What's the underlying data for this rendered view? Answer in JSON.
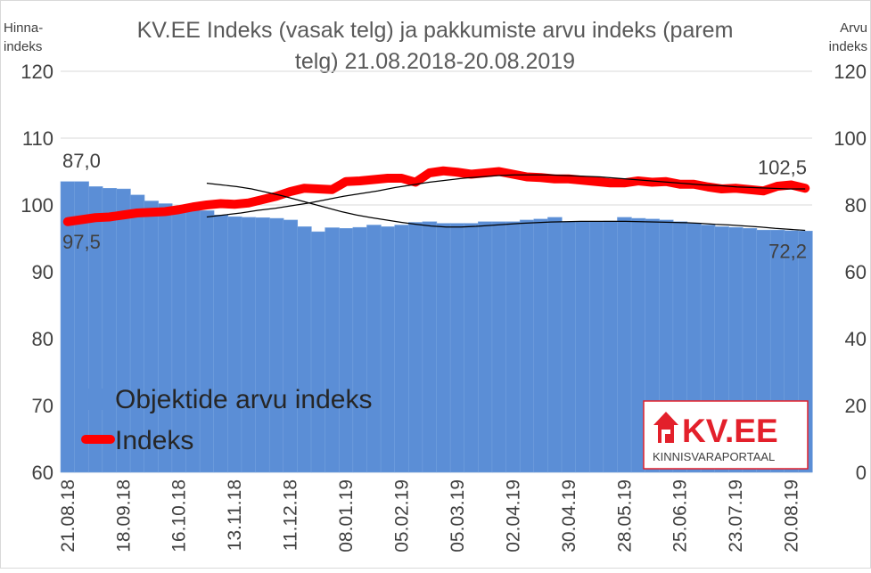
{
  "chart_data": {
    "type": "bar+line",
    "title": "KV.EE Indeks (vasak telg) ja pakkumiste arvu indeks (parem telg) 21.08.2018-20.08.2019",
    "title_lines": [
      "KV.EE Indeks (vasak telg) ja pakkumiste arvu indeks (parem",
      "telg) 21.08.2018-20.08.2019"
    ],
    "y_left_label_lines": [
      "Hinna-",
      "indeks"
    ],
    "y_right_label_lines": [
      "Arvu",
      "indeks"
    ],
    "y_left_lim": [
      60,
      120
    ],
    "y_left_ticks": [
      "60",
      "70",
      "80",
      "90",
      "100",
      "110",
      "120"
    ],
    "y_right_lim": [
      0,
      120
    ],
    "y_right_ticks": [
      "0",
      "20",
      "40",
      "60",
      "80",
      "100",
      "120"
    ],
    "x_tick_labels": [
      "21.08.18",
      "18.09.18",
      "16.10.18",
      "13.11.18",
      "11.12.18",
      "08.01.19",
      "05.02.19",
      "05.03.19",
      "02.04.19",
      "30.04.19",
      "28.05.19",
      "25.06.19",
      "23.07.19",
      "20.08.19"
    ],
    "grid": "horizontal",
    "legend_position": "bottom-left",
    "series": [
      {
        "name": "Objektide arvu indeks",
        "kind": "bar",
        "axis": "right",
        "color": "#5B8ED6",
        "values": [
          87.0,
          87.0,
          85.5,
          85.0,
          84.8,
          83.0,
          81.2,
          80.4,
          79.5,
          79.0,
          78.3,
          77.0,
          76.5,
          76.3,
          76.2,
          76.0,
          75.5,
          73.5,
          72.0,
          73.2,
          73.0,
          73.3,
          74.0,
          73.5,
          74.0,
          74.8,
          75.0,
          74.5,
          74.5,
          74.5,
          75.0,
          75.0,
          75.0,
          75.5,
          75.8,
          76.3,
          75.0,
          75.0,
          75.0,
          75.2,
          76.3,
          76.0,
          75.8,
          75.5,
          75.0,
          74.5,
          74.0,
          73.5,
          73.3,
          73.0,
          72.5,
          72.5,
          72.3,
          72.2
        ]
      },
      {
        "name": "Indeks",
        "kind": "line",
        "axis": "left",
        "color": "#FF0000",
        "values": [
          97.5,
          97.8,
          98.1,
          98.2,
          98.5,
          98.8,
          98.9,
          99.0,
          99.3,
          99.7,
          100.0,
          100.2,
          100.1,
          100.3,
          100.8,
          101.3,
          102.0,
          102.5,
          102.4,
          102.3,
          103.5,
          103.6,
          103.8,
          104.0,
          104.0,
          103.4,
          104.8,
          105.1,
          104.9,
          104.6,
          104.8,
          105.0,
          104.6,
          104.2,
          104.1,
          103.9,
          103.9,
          103.7,
          103.5,
          103.3,
          103.3,
          103.6,
          103.4,
          103.5,
          103.1,
          103.1,
          102.7,
          102.4,
          102.5,
          102.3,
          102.1,
          102.8,
          103.0,
          102.5
        ]
      },
      {
        "name": "",
        "kind": "trendline",
        "axis": "left",
        "color": "#000000",
        "values": [
          98.2,
          98.5,
          98.8,
          99.2,
          99.5,
          99.9,
          100.3,
          100.8,
          101.3,
          101.7,
          102.1,
          102.6,
          103.0,
          103.4,
          103.7,
          104.0,
          104.2,
          104.4,
          104.5,
          104.5,
          104.5,
          104.4,
          104.3,
          104.2,
          104.0,
          103.8,
          103.6,
          103.4,
          103.2,
          103.0,
          102.9,
          102.7,
          102.6,
          102.5,
          102.4,
          102.4
        ]
      },
      {
        "name": "",
        "kind": "trendline",
        "axis": "right",
        "color": "#000000",
        "values": [
          86.5,
          86.0,
          85.5,
          84.8,
          83.8,
          82.8,
          81.6,
          80.4,
          79.2,
          78.0,
          77.0,
          76.2,
          75.5,
          74.8,
          74.2,
          73.7,
          73.4,
          73.4,
          73.6,
          73.9,
          74.2,
          74.5,
          74.7,
          74.9,
          75.0,
          75.1,
          75.1,
          75.1,
          75.1,
          75.0,
          74.9,
          74.8,
          74.7,
          74.5,
          74.2,
          74.0,
          73.7,
          73.4,
          73.0,
          72.7,
          72.4
        ]
      }
    ],
    "annotations": [
      {
        "text": "87,0",
        "series": 0,
        "index": 0,
        "position": "above"
      },
      {
        "text": "97,5",
        "series": 1,
        "index": 0,
        "position": "below"
      },
      {
        "text": "102,5",
        "series": 1,
        "index": 53,
        "position": "above"
      },
      {
        "text": "72,2",
        "series": 0,
        "index": 53,
        "position": "below"
      }
    ]
  },
  "logo": {
    "brand": "KV.EE",
    "tagline": "KINNISVARAPORTAAL",
    "color": "#E3202B"
  }
}
